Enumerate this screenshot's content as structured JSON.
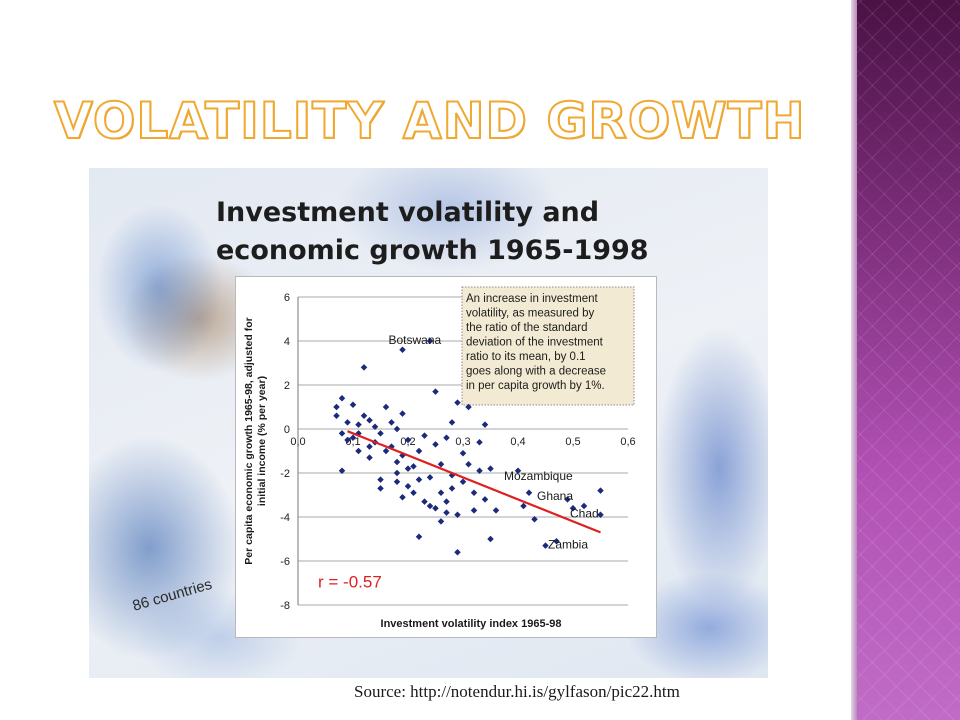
{
  "slide": {
    "title": "VOLATILITY AND GROWTH",
    "source": "Source: http://notendur.hi.is/gylfason/pic22.htm"
  },
  "figure": {
    "countries_note": "86 countries"
  },
  "colors": {
    "title_outline": "#f0a830",
    "band_top": "#4a1245",
    "band_bottom": "#c06cc6",
    "marker": "#1b2a7a",
    "trendline": "#e02020",
    "annotation_bg": "#f3ead4",
    "r_text": "#e02020"
  },
  "chart_data": {
    "type": "scatter",
    "title": "Investment volatility and economic growth 1965-1998",
    "title_lines": [
      "Investment volatility and",
      "economic growth 1965-1998"
    ],
    "xlabel": "Investment volatility index 1965-98",
    "ylabel": "Per capita economic growth 1965-98, adjusted for initial income (% per year)",
    "xlim": [
      0,
      0.6
    ],
    "ylim": [
      -8,
      6
    ],
    "x_ticks": [
      "0,0",
      "0,1",
      "0,2",
      "0,3",
      "0,4",
      "0,5",
      "0,6"
    ],
    "y_ticks": [
      "6",
      "4",
      "2",
      "0",
      "-2",
      "-4",
      "-6",
      "-8"
    ],
    "grid": "horizontal",
    "annotation": "An increase in investment volatility, as measured by the ratio of the standard deviation of the investment ratio to its mean, by 0.1 goes along with a decrease in per capita growth by 1%.",
    "correlation_label": "r = -0.57",
    "trendline": {
      "x": [
        0.09,
        0.55
      ],
      "y": [
        -0.1,
        -4.7
      ]
    },
    "labels": [
      {
        "text": "Botswana",
        "x": 0.19,
        "y": 3.6
      },
      {
        "text": "Mozambique",
        "x": 0.4,
        "y": -2.6
      },
      {
        "text": "Ghana",
        "x": 0.46,
        "y": -3.5
      },
      {
        "text": "Chad",
        "x": 0.52,
        "y": -4.3
      },
      {
        "text": "Zambia",
        "x": 0.48,
        "y": -5.7
      }
    ],
    "points": [
      [
        0.07,
        0.6
      ],
      [
        0.07,
        1.0
      ],
      [
        0.08,
        -0.2
      ],
      [
        0.08,
        -1.9
      ],
      [
        0.08,
        1.4
      ],
      [
        0.09,
        0.3
      ],
      [
        0.09,
        -0.5
      ],
      [
        0.1,
        1.1
      ],
      [
        0.1,
        -0.4
      ],
      [
        0.11,
        0.2
      ],
      [
        0.11,
        -1.0
      ],
      [
        0.11,
        -0.2
      ],
      [
        0.12,
        2.8
      ],
      [
        0.12,
        0.6
      ],
      [
        0.13,
        0.4
      ],
      [
        0.13,
        -0.8
      ],
      [
        0.13,
        -1.3
      ],
      [
        0.14,
        0.1
      ],
      [
        0.14,
        -0.6
      ],
      [
        0.15,
        -0.2
      ],
      [
        0.15,
        -2.3
      ],
      [
        0.15,
        -2.7
      ],
      [
        0.16,
        -1.0
      ],
      [
        0.16,
        1.0
      ],
      [
        0.17,
        0.3
      ],
      [
        0.17,
        -0.8
      ],
      [
        0.18,
        0.0
      ],
      [
        0.18,
        -1.5
      ],
      [
        0.18,
        -2.0
      ],
      [
        0.18,
        -2.4
      ],
      [
        0.19,
        3.6
      ],
      [
        0.19,
        0.7
      ],
      [
        0.19,
        -1.2
      ],
      [
        0.19,
        -3.1
      ],
      [
        0.2,
        -1.8
      ],
      [
        0.2,
        -0.5
      ],
      [
        0.2,
        -2.6
      ],
      [
        0.21,
        -2.9
      ],
      [
        0.21,
        -1.7
      ],
      [
        0.22,
        -1.0
      ],
      [
        0.22,
        -2.3
      ],
      [
        0.22,
        -4.9
      ],
      [
        0.23,
        -3.3
      ],
      [
        0.23,
        -0.3
      ],
      [
        0.24,
        4.0
      ],
      [
        0.24,
        -3.5
      ],
      [
        0.24,
        -2.2
      ],
      [
        0.25,
        1.7
      ],
      [
        0.25,
        -0.7
      ],
      [
        0.25,
        -3.6
      ],
      [
        0.26,
        -1.6
      ],
      [
        0.26,
        -4.2
      ],
      [
        0.26,
        -2.9
      ],
      [
        0.27,
        -0.4
      ],
      [
        0.27,
        -3.3
      ],
      [
        0.27,
        -3.8
      ],
      [
        0.28,
        0.3
      ],
      [
        0.28,
        -2.1
      ],
      [
        0.28,
        -2.7
      ],
      [
        0.29,
        1.2
      ],
      [
        0.29,
        -3.9
      ],
      [
        0.29,
        -5.6
      ],
      [
        0.3,
        -1.1
      ],
      [
        0.3,
        -2.4
      ],
      [
        0.31,
        1.0
      ],
      [
        0.31,
        -1.6
      ],
      [
        0.32,
        -2.9
      ],
      [
        0.32,
        -3.7
      ],
      [
        0.33,
        -0.6
      ],
      [
        0.33,
        -1.9
      ],
      [
        0.34,
        0.2
      ],
      [
        0.34,
        -3.2
      ],
      [
        0.35,
        -1.8
      ],
      [
        0.35,
        -5.0
      ],
      [
        0.36,
        -3.7
      ],
      [
        0.4,
        -1.9
      ],
      [
        0.41,
        -3.5
      ],
      [
        0.42,
        -2.9
      ],
      [
        0.43,
        -4.1
      ],
      [
        0.45,
        -5.3
      ],
      [
        0.47,
        -5.1
      ],
      [
        0.49,
        -3.2
      ],
      [
        0.5,
        -3.6
      ],
      [
        0.52,
        -3.5
      ],
      [
        0.55,
        -3.9
      ],
      [
        0.55,
        -2.8
      ]
    ]
  }
}
